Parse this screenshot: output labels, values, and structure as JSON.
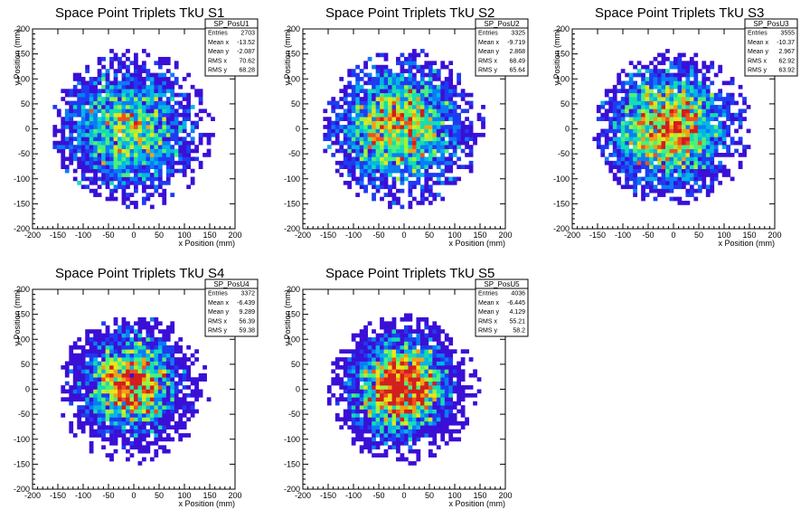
{
  "palette": [
    "#3a0fd6",
    "#1d3cf2",
    "#0a7cf5",
    "#06b4e6",
    "#14dcb4",
    "#4cf07a",
    "#a0f23c",
    "#e6e61a",
    "#f2a014",
    "#f0501e",
    "#d21e1e"
  ],
  "chart_data": [
    {
      "type": "heatmap",
      "title": "Space Point Triplets TkU S1",
      "stats_name": "SP_PosU1",
      "stats": [
        {
          "label": "Entries",
          "value": "2703"
        },
        {
          "label": "Mean x",
          "value": "-13.52"
        },
        {
          "label": "Mean y",
          "value": "-2.087"
        },
        {
          "label": "RMS x",
          "value": "70.62"
        },
        {
          "label": "RMS y",
          "value": "68.28"
        }
      ],
      "xlabel": "x Position (mm)",
      "ylabel": "y Position (mm)",
      "xlim": [
        -200,
        200
      ],
      "ylim": [
        -200,
        200
      ],
      "xticks": [
        "-200",
        "-150",
        "-100",
        "-50",
        "0",
        "50",
        "100",
        "150",
        "200"
      ],
      "yticks": [
        "-200",
        "-150",
        "-100",
        "-50",
        "0",
        "50",
        "100",
        "150",
        "200"
      ],
      "entries": 2703,
      "mean_x": -13.52,
      "mean_y": -2.087,
      "rms_x": 70.62,
      "rms_y": 68.28,
      "radius": 160,
      "peak": 10
    },
    {
      "type": "heatmap",
      "title": "Space Point Triplets TkU S2",
      "stats_name": "SP_PosU2",
      "stats": [
        {
          "label": "Entries",
          "value": "3325"
        },
        {
          "label": "Mean x",
          "value": "-9.719"
        },
        {
          "label": "Mean y",
          "value": "2.868"
        },
        {
          "label": "RMS x",
          "value": "68.49"
        },
        {
          "label": "RMS y",
          "value": "65.64"
        }
      ],
      "xlabel": "x Position (mm)",
      "ylabel": "y Position (mm)",
      "xlim": [
        -200,
        200
      ],
      "ylim": [
        -200,
        200
      ],
      "xticks": [
        "-200",
        "-150",
        "-100",
        "-50",
        "0",
        "50",
        "100",
        "150",
        "200"
      ],
      "yticks": [
        "-200",
        "-150",
        "-100",
        "-50",
        "0",
        "50",
        "100",
        "150",
        "200"
      ],
      "entries": 3325,
      "mean_x": -9.719,
      "mean_y": 2.868,
      "rms_x": 68.49,
      "rms_y": 65.64,
      "radius": 160,
      "peak": 10
    },
    {
      "type": "heatmap",
      "title": "Space Point Triplets TkU S3",
      "stats_name": "SP_PosU3",
      "stats": [
        {
          "label": "Entries",
          "value": "3555"
        },
        {
          "label": "Mean x",
          "value": "-10.37"
        },
        {
          "label": "Mean y",
          "value": "2.967"
        },
        {
          "label": "RMS x",
          "value": "62.92"
        },
        {
          "label": "RMS y",
          "value": "63.92"
        }
      ],
      "xlabel": "x Position (mm)",
      "ylabel": "y Position (mm)",
      "xlim": [
        -200,
        200
      ],
      "ylim": [
        -200,
        200
      ],
      "xticks": [
        "-200",
        "-150",
        "-100",
        "-50",
        "0",
        "50",
        "100",
        "150",
        "200"
      ],
      "yticks": [
        "-200",
        "-150",
        "-100",
        "-50",
        "0",
        "50",
        "100",
        "150",
        "200"
      ],
      "entries": 3555,
      "mean_x": -10.37,
      "mean_y": 2.967,
      "rms_x": 62.92,
      "rms_y": 63.92,
      "radius": 155,
      "peak": 11
    },
    {
      "type": "heatmap",
      "title": "Space Point Triplets TkU S4",
      "stats_name": "SP_PosU4",
      "stats": [
        {
          "label": "Entries",
          "value": "3372"
        },
        {
          "label": "Mean x",
          "value": "-6.439"
        },
        {
          "label": "Mean y",
          "value": "9.289"
        },
        {
          "label": "RMS x",
          "value": "56.39"
        },
        {
          "label": "RMS y",
          "value": "59.38"
        }
      ],
      "xlabel": "x Position (mm)",
      "ylabel": "y Position (mm)",
      "xlim": [
        -200,
        200
      ],
      "ylim": [
        -200,
        200
      ],
      "xticks": [
        "-200",
        "-150",
        "-100",
        "-50",
        "0",
        "50",
        "100",
        "150",
        "200"
      ],
      "yticks": [
        "-200",
        "-150",
        "-100",
        "-50",
        "0",
        "50",
        "100",
        "150",
        "200"
      ],
      "entries": 3372,
      "mean_x": -6.439,
      "mean_y": 9.289,
      "rms_x": 56.39,
      "rms_y": 59.38,
      "radius": 150,
      "peak": 12
    },
    {
      "type": "heatmap",
      "title": "Space Point Triplets TkU S5",
      "stats_name": "SP_PosU5",
      "stats": [
        {
          "label": "Entries",
          "value": "4036"
        },
        {
          "label": "Mean x",
          "value": "-6.445"
        },
        {
          "label": "Mean y",
          "value": "4.129"
        },
        {
          "label": "RMS x",
          "value": "55.21"
        },
        {
          "label": "RMS y",
          "value": "58.2"
        }
      ],
      "xlabel": "x Position (mm)",
      "ylabel": "y Position (mm)",
      "xlim": [
        -200,
        200
      ],
      "ylim": [
        -200,
        200
      ],
      "xticks": [
        "-200",
        "-150",
        "-100",
        "-50",
        "0",
        "50",
        "100",
        "150",
        "200"
      ],
      "yticks": [
        "-200",
        "-150",
        "-100",
        "-50",
        "0",
        "50",
        "100",
        "150",
        "200"
      ],
      "entries": 4036,
      "mean_x": -6.445,
      "mean_y": 4.129,
      "rms_x": 55.21,
      "rms_y": 58.2,
      "radius": 150,
      "peak": 12
    }
  ]
}
